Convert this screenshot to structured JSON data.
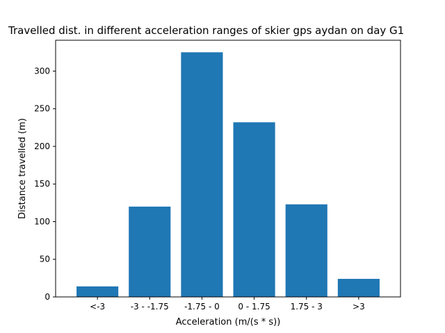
{
  "chart_data": {
    "type": "bar",
    "title": "Travelled dist. in different acceleration ranges of skier gps aydan on day G1",
    "xlabel": "Acceleration (m/(s * s))",
    "ylabel": "Distance travelled (m)",
    "categories": [
      "<-3",
      "-3 - -1.75",
      "-1.75 - 0",
      "0 - 1.75",
      "1.75 - 3",
      ">3"
    ],
    "values": [
      14,
      120,
      325,
      232,
      123,
      24
    ],
    "ylim": [
      0,
      341
    ],
    "yticks": [
      0,
      50,
      100,
      150,
      200,
      250,
      300
    ],
    "bar_color": "#1f77b4",
    "grid": false
  }
}
